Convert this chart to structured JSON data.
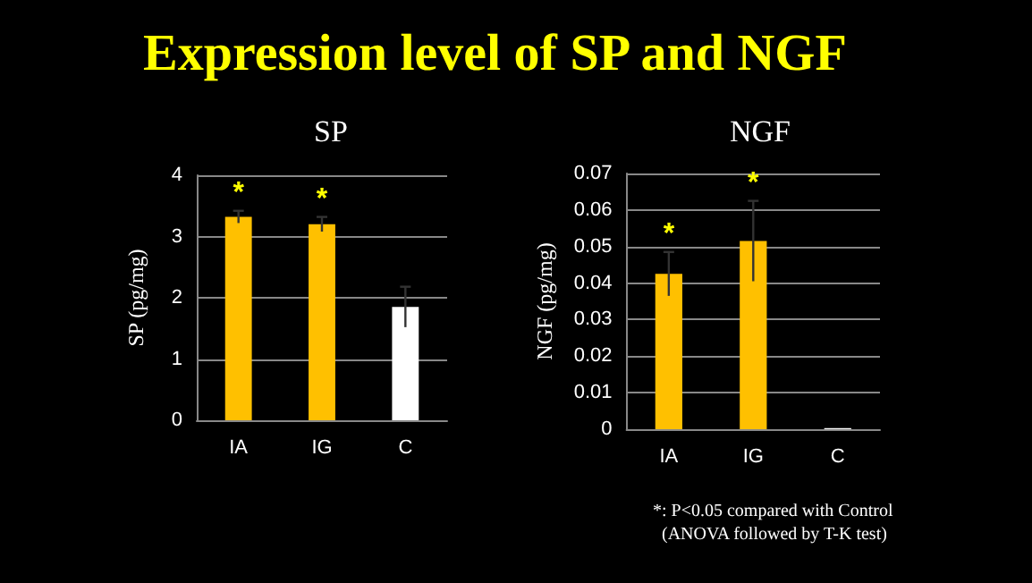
{
  "chart_data": [
    {
      "type": "other",
      "title": "Expression level of SP and NGF"
    },
    {
      "type": "bar",
      "title": "SP",
      "ylabel": "SP (pg/mg)",
      "categories": [
        "IA",
        "IG",
        "C"
      ],
      "values": [
        3.32,
        3.2,
        1.85
      ],
      "errors": [
        0.1,
        0.12,
        0.33
      ],
      "colors": [
        "#ffc000",
        "#ffc000",
        "#ffffff"
      ],
      "ylim": [
        0,
        4
      ],
      "yticks": [
        0,
        1,
        2,
        3,
        4
      ],
      "grid": "y",
      "annotations": [
        {
          "text": "*",
          "x": "IA",
          "y": 3.32
        },
        {
          "text": "*",
          "x": "IG",
          "y": 3.2
        }
      ]
    },
    {
      "type": "bar",
      "title": "NGF",
      "ylabel": "NGF (pg/mg)",
      "categories": [
        "IA",
        "IG",
        "C"
      ],
      "values": [
        0.0425,
        0.0515,
        0.0003
      ],
      "errors": [
        0.006,
        0.011,
        null
      ],
      "colors": [
        "#ffc000",
        "#ffc000",
        "#ffffff"
      ],
      "ylim": [
        0,
        0.07
      ],
      "yticks": [
        0,
        0.01,
        0.02,
        0.03,
        0.04,
        0.05,
        0.06,
        0.07
      ],
      "grid": "y",
      "annotations": [
        {
          "text": "*",
          "x": "IA",
          "y": 0.0425
        },
        {
          "text": "*",
          "x": "IG",
          "y": 0.0515
        },
        "*: P<0.05 compared with Control",
        "(ANOVA followed by T-K test)"
      ]
    }
  ]
}
